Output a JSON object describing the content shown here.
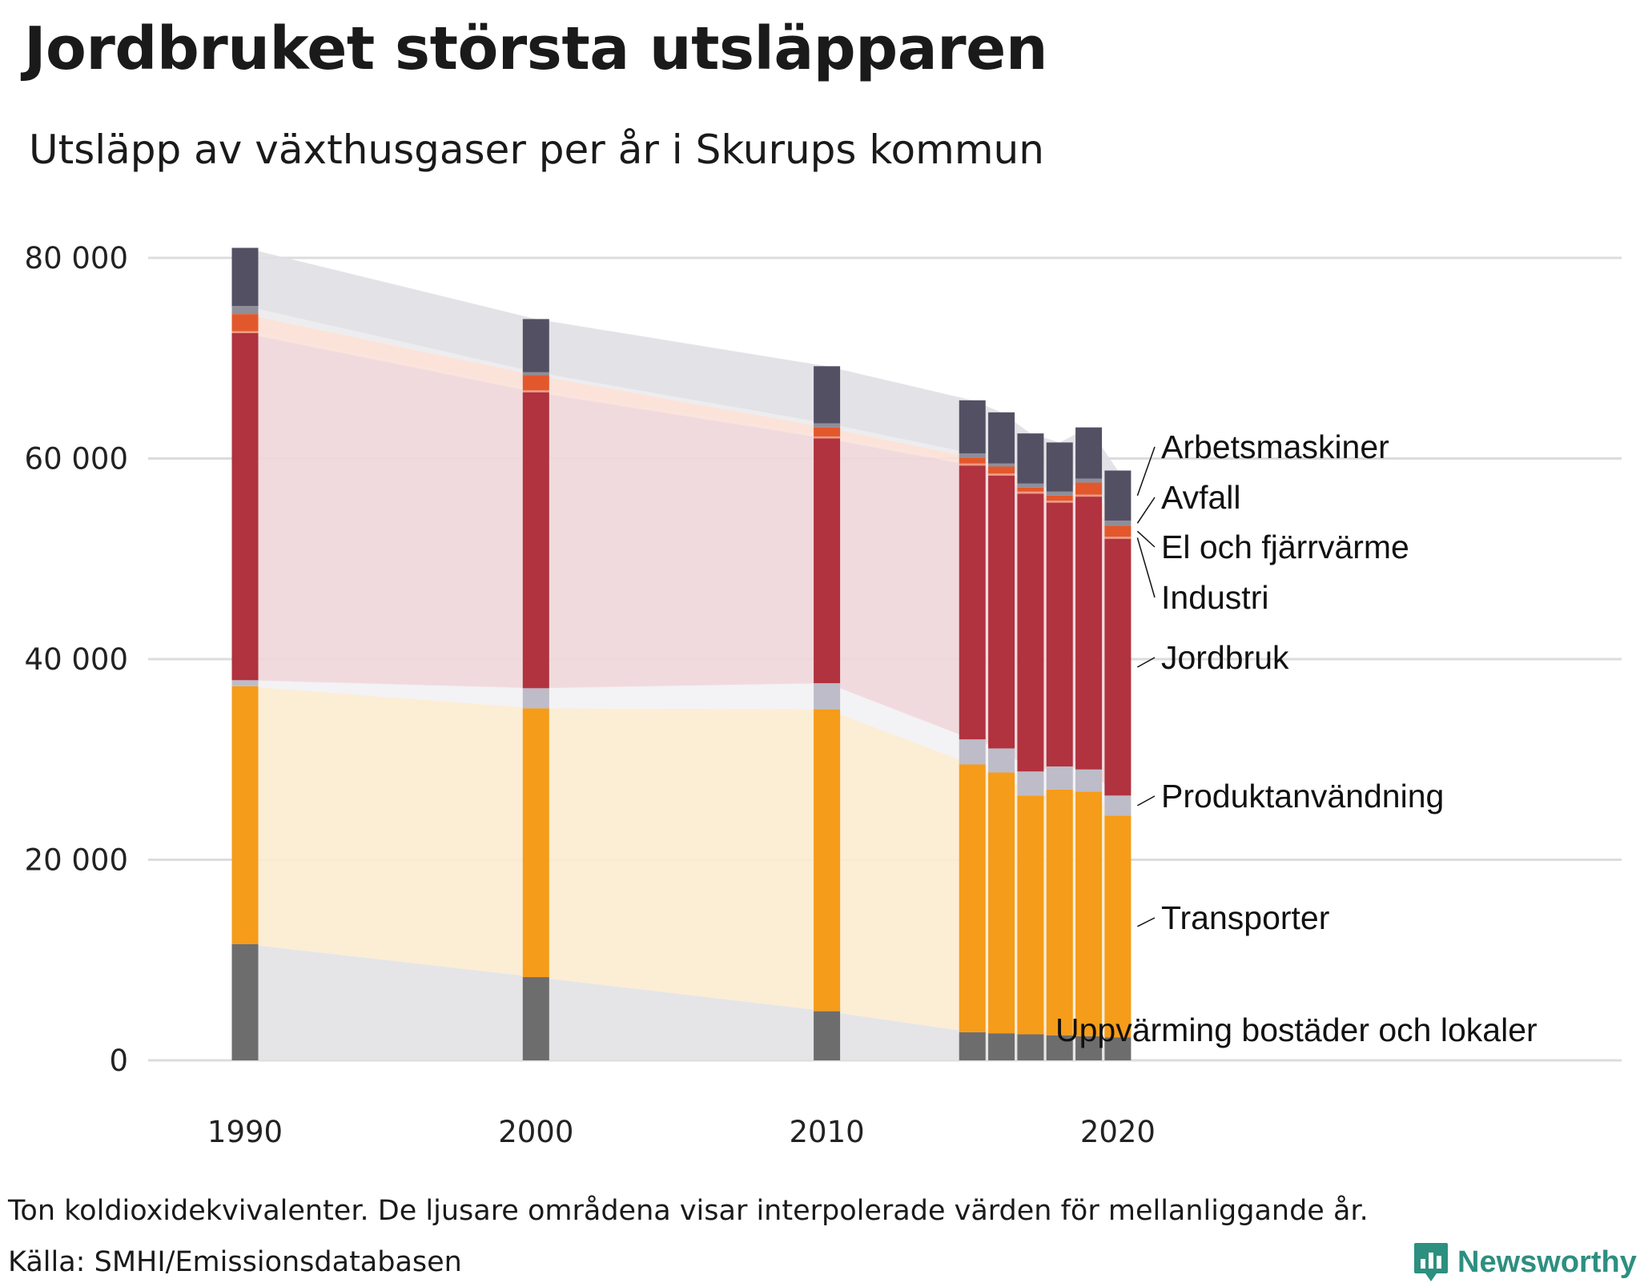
{
  "header": {
    "title": "Jordbruket största utsläpparen",
    "subtitle": "Utsläpp av växthusgaser per år i Skurups kommun"
  },
  "footer": {
    "note": "Ton koldioxidekvivalenter. De ljusare områdena visar interpolerade värden för mellanliggande år.",
    "source": "Källa: SMHI/Emissionsdatabasen",
    "brand": "Newsworthy"
  },
  "chart_data": {
    "type": "bar",
    "stacked": true,
    "title": "Jordbruket största utsläpparen",
    "subtitle": "Utsläpp av växthusgaser per år i Skurups kommun",
    "unit": "Ton koldioxidekvivalenter",
    "years": [
      1990,
      2000,
      2010,
      2015,
      2016,
      2017,
      2018,
      2019,
      2020
    ],
    "ylim": [
      0,
      80000
    ],
    "yticks": [
      0,
      20000,
      40000,
      60000,
      80000
    ],
    "ytick_labels": [
      "0",
      "20 000",
      "40 000",
      "60 000",
      "80 000"
    ],
    "xticks": [
      1990,
      2000,
      2010,
      2020
    ],
    "xtick_labels": [
      "1990",
      "2000",
      "2010",
      "2020"
    ],
    "grid": true,
    "interpolated_areas": true,
    "series": [
      {
        "name": "Uppvärming bostäder och lokaler",
        "color": "#6d6d6d",
        "area_color": "#e2e2e4",
        "values": [
          11600,
          8300,
          4900,
          2800,
          2700,
          2600,
          2500,
          2400,
          2300
        ]
      },
      {
        "name": "Transporter",
        "color": "#f59c1a",
        "area_color": "#fcebd0",
        "values": [
          25700,
          26800,
          30100,
          26700,
          26000,
          23800,
          24500,
          24400,
          22100
        ]
      },
      {
        "name": "Produktanvändning",
        "color": "#bdbcc8",
        "area_color": "#f2f1f4",
        "values": [
          600,
          2000,
          2600,
          2500,
          2400,
          2400,
          2300,
          2200,
          2000
        ]
      },
      {
        "name": "Jordbruk",
        "color": "#b0333f",
        "area_color": "#efd6da",
        "values": [
          34600,
          29500,
          24400,
          27300,
          27200,
          27700,
          26300,
          27200,
          25600
        ]
      },
      {
        "name": "Industri",
        "color": "#ee9a80",
        "area_color": "#fbe0d6",
        "values": [
          200,
          200,
          200,
          200,
          200,
          200,
          200,
          200,
          200
        ]
      },
      {
        "name": "El och fjärrvärme",
        "color": "#e2582c",
        "area_color": "#fbe0d6",
        "values": [
          1700,
          1500,
          900,
          600,
          700,
          400,
          500,
          1200,
          1100
        ]
      },
      {
        "name": "Avfall",
        "color": "#8f8e9a",
        "area_color": "#ebebee",
        "values": [
          800,
          300,
          400,
          400,
          300,
          400,
          400,
          400,
          500
        ]
      },
      {
        "name": "Arbetsmaskiner",
        "color": "#545064",
        "area_color": "#e0e0e4",
        "values": [
          5800,
          5300,
          5700,
          5300,
          5100,
          5000,
          4900,
          5100,
          5000
        ]
      }
    ]
  }
}
